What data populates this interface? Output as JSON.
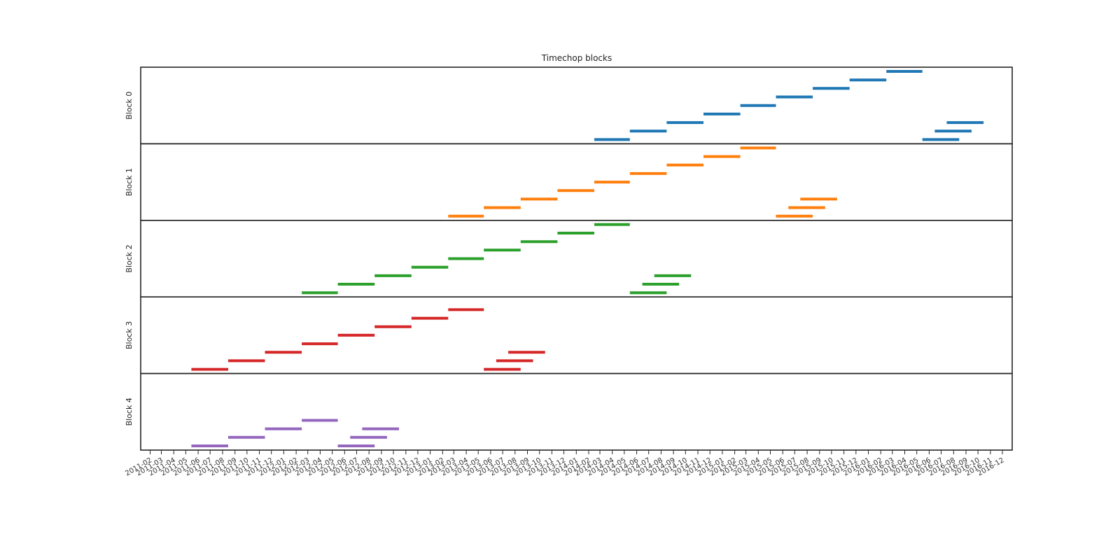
{
  "chart_data": {
    "type": "gantt",
    "title": "Timechop blocks",
    "x_axis": {
      "range": [
        "2011-02",
        "2016-12"
      ],
      "tick_labels": [
        "2011-02",
        "2011-03",
        "2011-04",
        "2011-05",
        "2011-06",
        "2011-07",
        "2011-08",
        "2011-09",
        "2011-10",
        "2011-11",
        "2011-12",
        "2012-01",
        "2012-02",
        "2012-03",
        "2012-04",
        "2012-05",
        "2012-06",
        "2012-07",
        "2012-08",
        "2012-09",
        "2012-10",
        "2012-11",
        "2012-12",
        "2013-01",
        "2013-02",
        "2013-03",
        "2013-04",
        "2013-05",
        "2013-06",
        "2013-07",
        "2013-08",
        "2013-09",
        "2013-10",
        "2013-11",
        "2013-12",
        "2014-01",
        "2014-02",
        "2014-03",
        "2014-04",
        "2014-05",
        "2014-06",
        "2014-07",
        "2014-08",
        "2014-09",
        "2014-10",
        "2014-11",
        "2014-12",
        "2015-01",
        "2015-02",
        "2015-03",
        "2015-04",
        "2015-05",
        "2015-06",
        "2015-07",
        "2015-08",
        "2015-09",
        "2015-10",
        "2015-11",
        "2015-12",
        "2016-01",
        "2016-02",
        "2016-03",
        "2016-04",
        "2016-05",
        "2016-06",
        "2016-07",
        "2016-08",
        "2016-09",
        "2016-10",
        "2016-11",
        "2016-12"
      ]
    },
    "grid": false,
    "blocks": [
      {
        "label": "Block 0",
        "color": "#1f77b4",
        "segments": [
          {
            "level": 0,
            "start": "2014-02-15",
            "end": "2014-05-15"
          },
          {
            "level": 1,
            "start": "2014-05-15",
            "end": "2014-08-15"
          },
          {
            "level": 2,
            "start": "2014-08-15",
            "end": "2014-11-15"
          },
          {
            "level": 3,
            "start": "2014-11-15",
            "end": "2015-02-15"
          },
          {
            "level": 4,
            "start": "2015-02-15",
            "end": "2015-05-15"
          },
          {
            "level": 5,
            "start": "2015-05-15",
            "end": "2015-08-15"
          },
          {
            "level": 6,
            "start": "2015-08-15",
            "end": "2015-11-15"
          },
          {
            "level": 7,
            "start": "2015-11-15",
            "end": "2016-02-15"
          },
          {
            "level": 8,
            "start": "2016-02-15",
            "end": "2016-05-15"
          },
          {
            "level": 0,
            "start": "2016-05-15",
            "end": "2016-08-15"
          },
          {
            "level": 1,
            "start": "2016-06-15",
            "end": "2016-09-15"
          },
          {
            "level": 2,
            "start": "2016-07-15",
            "end": "2016-10-15"
          }
        ]
      },
      {
        "label": "Block 1",
        "color": "#ff7f0e",
        "segments": [
          {
            "level": 0,
            "start": "2013-02-15",
            "end": "2013-05-15"
          },
          {
            "level": 1,
            "start": "2013-05-15",
            "end": "2013-08-15"
          },
          {
            "level": 2,
            "start": "2013-08-15",
            "end": "2013-11-15"
          },
          {
            "level": 3,
            "start": "2013-11-15",
            "end": "2014-02-15"
          },
          {
            "level": 4,
            "start": "2014-02-15",
            "end": "2014-05-15"
          },
          {
            "level": 5,
            "start": "2014-05-15",
            "end": "2014-08-15"
          },
          {
            "level": 6,
            "start": "2014-08-15",
            "end": "2014-11-15"
          },
          {
            "level": 7,
            "start": "2014-11-15",
            "end": "2015-02-15"
          },
          {
            "level": 8,
            "start": "2015-02-15",
            "end": "2015-05-15"
          },
          {
            "level": 0,
            "start": "2015-05-15",
            "end": "2015-08-15"
          },
          {
            "level": 1,
            "start": "2015-06-15",
            "end": "2015-09-15"
          },
          {
            "level": 2,
            "start": "2015-07-15",
            "end": "2015-10-15"
          }
        ]
      },
      {
        "label": "Block 2",
        "color": "#2ca02c",
        "segments": [
          {
            "level": 0,
            "start": "2012-02-15",
            "end": "2012-05-15"
          },
          {
            "level": 1,
            "start": "2012-05-15",
            "end": "2012-08-15"
          },
          {
            "level": 2,
            "start": "2012-08-15",
            "end": "2012-11-15"
          },
          {
            "level": 3,
            "start": "2012-11-15",
            "end": "2013-02-15"
          },
          {
            "level": 4,
            "start": "2013-02-15",
            "end": "2013-05-15"
          },
          {
            "level": 5,
            "start": "2013-05-15",
            "end": "2013-08-15"
          },
          {
            "level": 6,
            "start": "2013-08-15",
            "end": "2013-11-15"
          },
          {
            "level": 7,
            "start": "2013-11-15",
            "end": "2014-02-15"
          },
          {
            "level": 8,
            "start": "2014-02-15",
            "end": "2014-05-15"
          },
          {
            "level": 0,
            "start": "2014-05-15",
            "end": "2014-08-15"
          },
          {
            "level": 1,
            "start": "2014-06-15",
            "end": "2014-09-15"
          },
          {
            "level": 2,
            "start": "2014-07-15",
            "end": "2014-10-15"
          }
        ]
      },
      {
        "label": "Block 3",
        "color": "#d62728",
        "segments": [
          {
            "level": 0,
            "start": "2011-05-15",
            "end": "2011-08-15"
          },
          {
            "level": 1,
            "start": "2011-08-15",
            "end": "2011-11-15"
          },
          {
            "level": 2,
            "start": "2011-11-15",
            "end": "2012-02-15"
          },
          {
            "level": 3,
            "start": "2012-02-15",
            "end": "2012-05-15"
          },
          {
            "level": 4,
            "start": "2012-05-15",
            "end": "2012-08-15"
          },
          {
            "level": 5,
            "start": "2012-08-15",
            "end": "2012-11-15"
          },
          {
            "level": 6,
            "start": "2012-11-15",
            "end": "2013-02-15"
          },
          {
            "level": 7,
            "start": "2013-02-15",
            "end": "2013-05-15"
          },
          {
            "level": 0,
            "start": "2013-05-15",
            "end": "2013-08-15"
          },
          {
            "level": 1,
            "start": "2013-06-15",
            "end": "2013-09-15"
          },
          {
            "level": 2,
            "start": "2013-07-15",
            "end": "2013-10-15"
          }
        ]
      },
      {
        "label": "Block 4",
        "color": "#9467bd",
        "segments": [
          {
            "level": 0,
            "start": "2011-05-15",
            "end": "2011-08-15"
          },
          {
            "level": 1,
            "start": "2011-08-15",
            "end": "2011-11-15"
          },
          {
            "level": 2,
            "start": "2011-11-15",
            "end": "2012-02-15"
          },
          {
            "level": 3,
            "start": "2012-02-15",
            "end": "2012-05-15"
          },
          {
            "level": 0,
            "start": "2012-05-15",
            "end": "2012-08-15"
          },
          {
            "level": 1,
            "start": "2012-06-15",
            "end": "2012-09-15"
          },
          {
            "level": 2,
            "start": "2012-07-15",
            "end": "2012-10-15"
          }
        ]
      }
    ]
  }
}
